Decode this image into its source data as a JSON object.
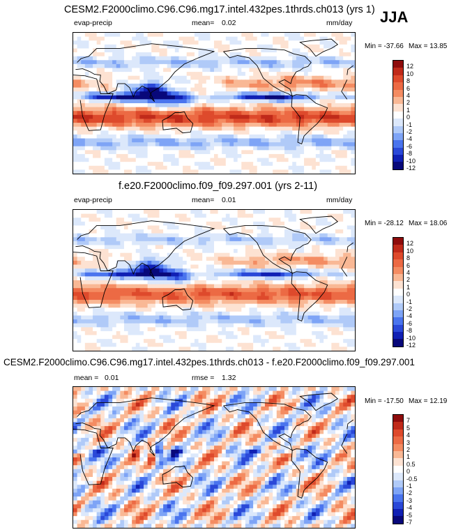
{
  "season": "JJA",
  "colors": {
    "levels": [
      "#08087a",
      "#1020b4",
      "#2a48d8",
      "#4a74ee",
      "#7ea4f6",
      "#b0caf8",
      "#dce8fb",
      "#ffffff",
      "#fde2d2",
      "#f9b895",
      "#f48c62",
      "#ec6a44",
      "#de4a2c",
      "#c02a1a",
      "#8e0c0c"
    ],
    "land_line": "#000000"
  },
  "chart_data": [
    {
      "type": "heatmap",
      "panel": "top",
      "title": "CESM2.F2000climo.C96.C96.mg17.intel.432pes.1thrds.ch013 (yrs 1)",
      "left_label": "evap-precip",
      "stat_label": "mean=",
      "stat_value": "0.02",
      "units": "mm/day",
      "min_label": "Min = -37.66",
      "max_label": "Max = 13.85",
      "min": -37.66,
      "max": 13.85,
      "colorbar_ticks": [
        "12",
        "10",
        "8",
        "6",
        "4",
        "2",
        "1",
        "0",
        "-1",
        "-2",
        "-4",
        "-6",
        "-8",
        "-10",
        "-12"
      ]
    },
    {
      "type": "heatmap",
      "panel": "middle",
      "title": "f.e20.F2000climo.f09_f09.297.001 (yrs 2-11)",
      "left_label": "evap-precip",
      "stat_label": "mean=",
      "stat_value": "0.01",
      "units": "mm/day",
      "min_label": "Min = -28.12",
      "max_label": "Max = 18.06",
      "min": -28.12,
      "max": 18.06,
      "colorbar_ticks": [
        "12",
        "10",
        "8",
        "6",
        "4",
        "2",
        "1",
        "0",
        "-1",
        "-2",
        "-4",
        "-6",
        "-8",
        "-10",
        "-12"
      ]
    },
    {
      "type": "heatmap",
      "panel": "bottom",
      "title": "CESM2.F2000climo.C96.C96.mg17.intel.432pes.1thrds.ch013 - f.e20.F2000climo.f09_f09.297.001",
      "left_label": "mean =",
      "left_value": "0.01",
      "stat_label": "rmse =",
      "stat_value": "1.32",
      "min_label": "Min = -17.50",
      "max_label": "Max = 12.19",
      "min": -17.5,
      "max": 12.19,
      "colorbar_ticks": [
        "7",
        "5",
        "4",
        "3",
        "2",
        "1",
        "0.5",
        "0",
        "-0.5",
        "-1",
        "-2",
        "-3",
        "-4",
        "-5",
        "-7"
      ]
    }
  ]
}
